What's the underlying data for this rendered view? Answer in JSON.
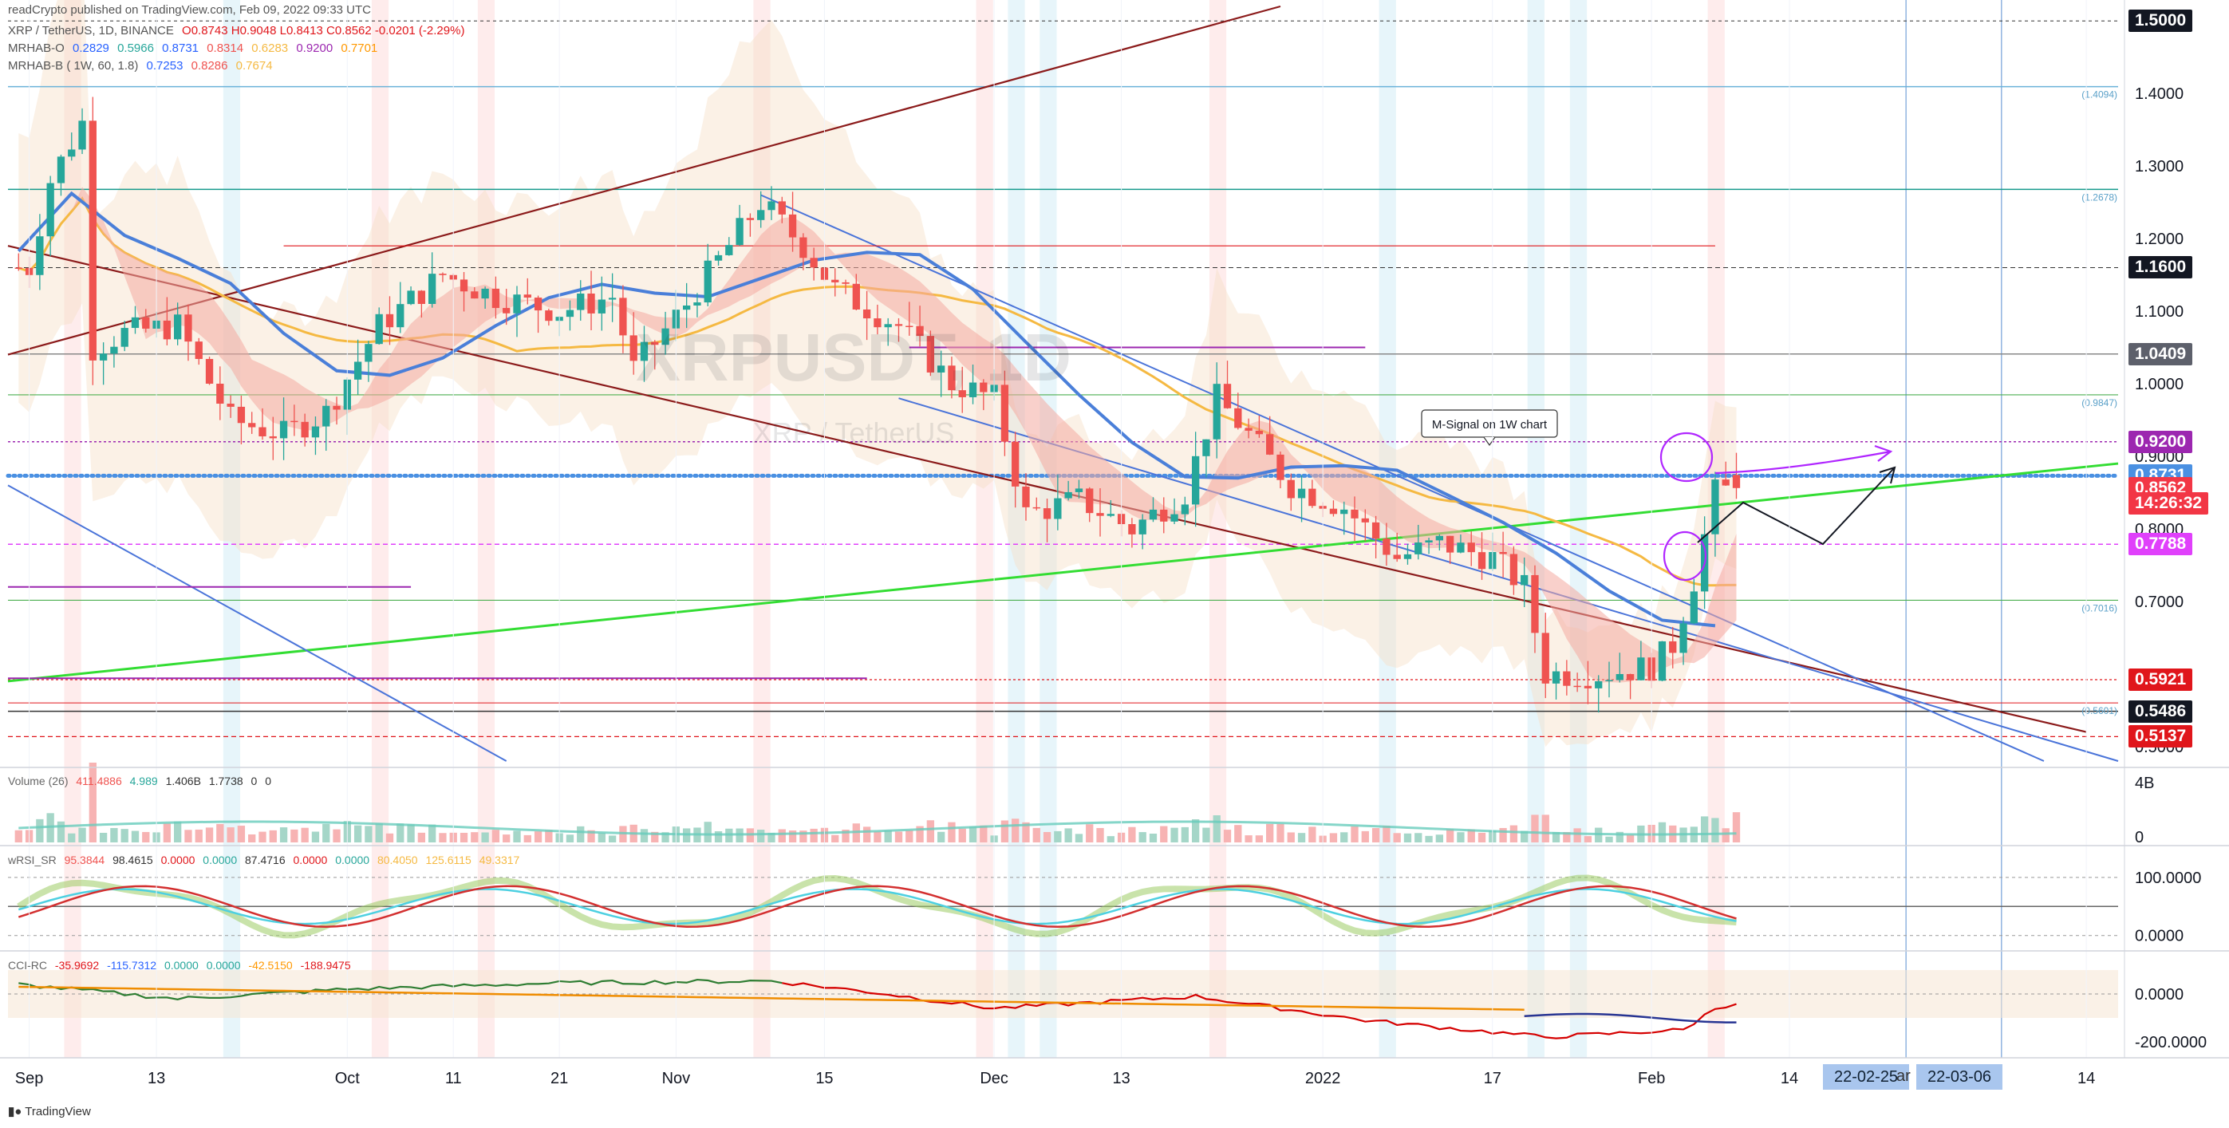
{
  "header": {
    "published": "readCrypto published on TradingView.com, Feb 09, 2022 09:33 UTC",
    "symbol_line": "XRP / TetherUS, 1D, BINANCE",
    "ohlc": "O0.8743 H0.9048 L0.8413 C0.8562 -0.0201 (-2.29%)",
    "ind1_name": "MRHAB-O",
    "ind1_vals": [
      "0.2829",
      "0.5966",
      "0.8731",
      "0.8314",
      "0.6283",
      "0.9200",
      "0.7701"
    ],
    "ind2_name": "MRHAB-B ( 1W, 60, 1.8)",
    "ind2_vals": [
      "0.7253",
      "0.8286",
      "0.7674"
    ]
  },
  "watermark": {
    "big": "XRPUSDT, 1D",
    "small": "XRP / TetherUS"
  },
  "annotation": {
    "text": "M-Signal on 1W chart"
  },
  "fib_labels": [
    {
      "label": "(1.4094)",
      "price": 1.4094
    },
    {
      "label": "(1.2678)",
      "price": 1.2678
    },
    {
      "label": "(0.9847)",
      "price": 0.9847
    },
    {
      "label": "(0.7016)",
      "price": 0.7016
    },
    {
      "label": "(0.5601)",
      "price": 0.5601
    }
  ],
  "price_axis": {
    "ticks": [
      "1.4000",
      "1.3000",
      "1.2000",
      "1.1000",
      "1.0000",
      "0.9000",
      "0.8000",
      "0.7000",
      "0.6000",
      "0.5000"
    ],
    "boxes": [
      {
        "label": "1.5000",
        "price": 1.5,
        "bg": "#131722",
        "fg": "#ffffff"
      },
      {
        "label": "1.1600",
        "price": 1.16,
        "bg": "#131722",
        "fg": "#ffffff"
      },
      {
        "label": "1.0409",
        "price": 1.0409,
        "bg": "#5d606b",
        "fg": "#ffffff"
      },
      {
        "label": "0.9200",
        "price": 0.92,
        "bg": "#9c27b0",
        "fg": "#ffffff"
      },
      {
        "label": "0.8731",
        "price": 0.8731,
        "bg": "#4a90e2",
        "fg": "#ffffff"
      },
      {
        "label": "0.8562",
        "price": 0.8562,
        "bg": "#f23645",
        "fg": "#ffffff"
      },
      {
        "label": "14:26:32",
        "price": 0.835,
        "bg": "#f23645",
        "fg": "#ffffff"
      },
      {
        "label": "0.7788",
        "price": 0.7788,
        "bg": "#e040fb",
        "fg": "#ffffff"
      },
      {
        "label": "0.5921",
        "price": 0.5921,
        "bg": "#e0161b",
        "fg": "#ffffff"
      },
      {
        "label": "0.5486",
        "price": 0.5486,
        "bg": "#131722",
        "fg": "#ffffff"
      },
      {
        "label": "0.5137",
        "price": 0.5137,
        "bg": "#e0161b",
        "fg": "#ffffff"
      }
    ]
  },
  "volume": {
    "legend_name": "Volume (26)",
    "legend_vals": [
      "411.4886",
      "4.989",
      "1.406B",
      "1.7738",
      "0",
      "0"
    ],
    "axis_labels": [
      "4B",
      "0"
    ]
  },
  "wrsi": {
    "legend_name": "wRSI_SR",
    "legend_vals": [
      "95.3844",
      "98.4615",
      "0.0000",
      "0.0000",
      "87.4716",
      "0.0000",
      "0.0000",
      "80.4050",
      "125.6115",
      "49.3317"
    ],
    "axis_labels": [
      "100.0000",
      "0.0000"
    ]
  },
  "cci": {
    "legend_name": "CCI-RC",
    "legend_vals": [
      "-35.9692",
      "-115.7312",
      "0.0000",
      "0.0000",
      "-42.5150",
      "-188.9475"
    ],
    "axis_labels": [
      "0.0000",
      "-200.0000"
    ]
  },
  "time_axis": {
    "labels": [
      "Sep",
      "13",
      "Oct",
      "11",
      "21",
      "Nov",
      "15",
      "Dec",
      "13",
      "2022",
      "17",
      "Feb",
      "14",
      "14"
    ]
  },
  "date_badges": [
    "22-02-25",
    "22-03-06"
  ],
  "time_axis_partial": "ar",
  "logo": "TradingView",
  "colors": {
    "up": "#26a69a",
    "down": "#ef5350",
    "ema": "#f5b942",
    "green_trend": "#33dd33",
    "darkred_trend": "#8b1a1a",
    "blue_trend": "#4a74d9",
    "purple": "#9c27b0"
  },
  "chart_data": {
    "type": "candlestick",
    "symbol": "XRPUSDT",
    "timeframe": "1D",
    "y_range": [
      0.48,
      1.52
    ],
    "x_range": [
      "2021-08-30",
      "2022-03-17"
    ],
    "horizontal_levels": [
      1.5,
      1.4094,
      1.2678,
      1.16,
      1.0409,
      0.9847,
      0.92,
      0.8731,
      0.7788,
      0.7016,
      0.5921,
      0.5601,
      0.5486,
      0.5137
    ],
    "candles_anchor": [
      [
        "2021-09-01",
        1.16
      ],
      [
        "2021-09-03",
        1.28
      ],
      [
        "2021-09-06",
        1.36
      ],
      [
        "2021-09-07",
        1.05
      ],
      [
        "2021-09-10",
        1.07
      ],
      [
        "2021-09-15",
        1.08
      ],
      [
        "2021-09-20",
        0.95
      ],
      [
        "2021-09-25",
        0.93
      ],
      [
        "2021-09-29",
        0.96
      ],
      [
        "2021-10-04",
        1.08
      ],
      [
        "2021-10-10",
        1.15
      ],
      [
        "2021-10-15",
        1.12
      ],
      [
        "2021-10-21",
        1.1
      ],
      [
        "2021-10-26",
        1.12
      ],
      [
        "2021-10-28",
        1.02
      ],
      [
        "2021-11-02",
        1.11
      ],
      [
        "2021-11-09",
        1.25
      ],
      [
        "2021-11-13",
        1.19
      ],
      [
        "2021-11-16",
        1.13
      ],
      [
        "2021-11-22",
        1.08
      ],
      [
        "2021-11-27",
        1.0
      ],
      [
        "2021-12-01",
        0.98
      ],
      [
        "2021-12-04",
        0.82
      ],
      [
        "2021-12-09",
        0.84
      ],
      [
        "2021-12-14",
        0.8
      ],
      [
        "2021-12-19",
        0.85
      ],
      [
        "2021-12-22",
        0.98
      ],
      [
        "2021-12-25",
        0.93
      ],
      [
        "2021-12-29",
        0.86
      ],
      [
        "2022-01-03",
        0.83
      ],
      [
        "2022-01-08",
        0.76
      ],
      [
        "2022-01-12",
        0.78
      ],
      [
        "2022-01-17",
        0.76
      ],
      [
        "2022-01-20",
        0.72
      ],
      [
        "2022-01-22",
        0.6
      ],
      [
        "2022-01-27",
        0.6
      ],
      [
        "2022-02-01",
        0.61
      ],
      [
        "2022-02-03",
        0.64
      ],
      [
        "2022-02-05",
        0.73
      ],
      [
        "2022-02-07",
        0.85
      ],
      [
        "2022-02-09",
        0.8562
      ]
    ],
    "last": {
      "open": 0.8743,
      "high": 0.9048,
      "low": 0.8413,
      "close": 0.8562
    }
  }
}
